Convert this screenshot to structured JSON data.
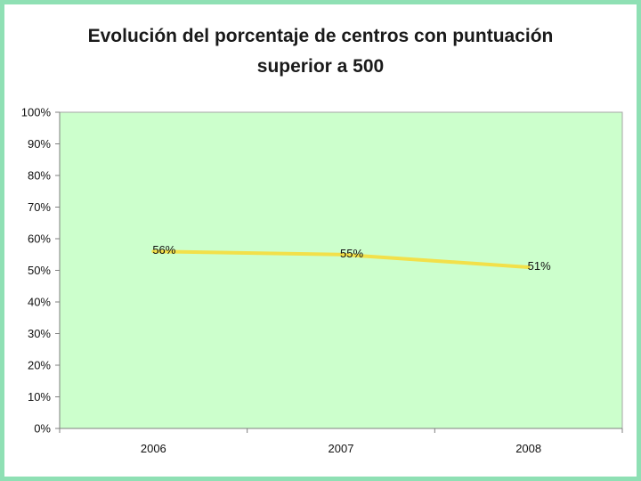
{
  "chart_data": {
    "type": "line",
    "title_line1": "Evolución del porcentaje de centros con puntuación",
    "title_line2": "superior a 500",
    "categories": [
      "2006",
      "2007",
      "2008"
    ],
    "series": [
      {
        "values": [
          56,
          55,
          51
        ],
        "labels": [
          "56%",
          "55%",
          "51%"
        ],
        "color": "#f2e04a"
      }
    ],
    "ylim": [
      0,
      100
    ],
    "yticks": [
      "0%",
      "10%",
      "20%",
      "30%",
      "40%",
      "50%",
      "60%",
      "70%",
      "80%",
      "90%",
      "100%"
    ],
    "xlabel": "",
    "ylabel": "",
    "grid": false,
    "plot_background": "#ccffcc",
    "frame_color": "#8fe0b4"
  }
}
